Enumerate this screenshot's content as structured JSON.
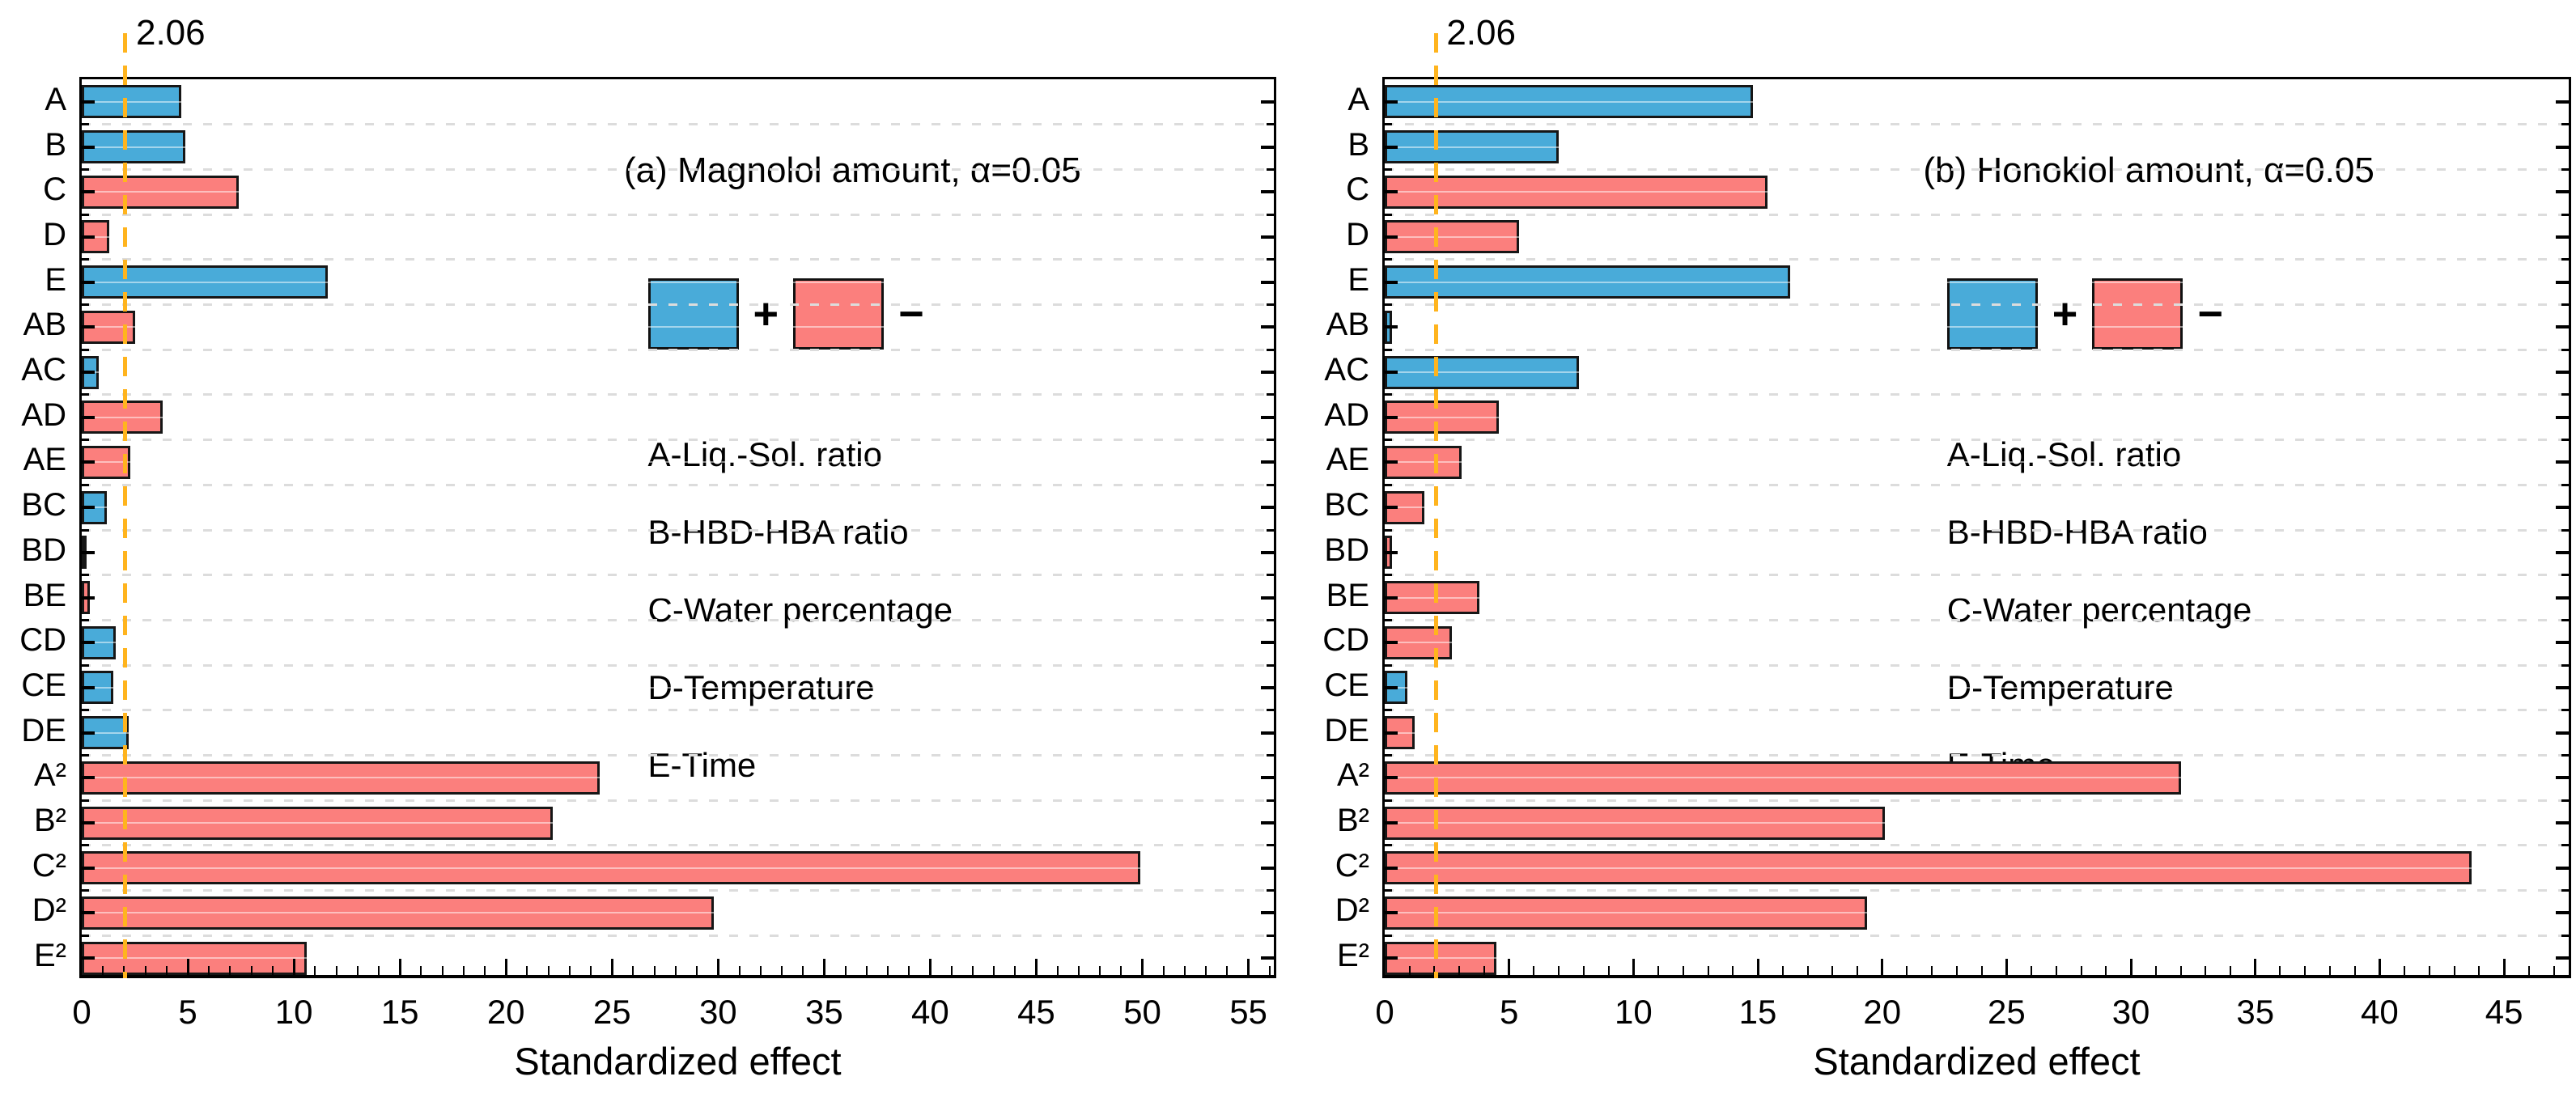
{
  "figure": {
    "xlabel": "Standardized effect",
    "threshold_label": "2.06",
    "threshold_value": 2.06
  },
  "colors": {
    "positive": "#49ABD9",
    "negative": "#FB7F7D",
    "threshold_line": "#FFB41E",
    "grid": "#DCDCDC",
    "bar_border": "#161616",
    "axis": "#000000"
  },
  "chart_data": [
    {
      "type": "bar",
      "orientation": "horizontal",
      "title": "(a) Magnolol amount, α=0.05",
      "xlabel": "Standardized effect",
      "threshold": 2.06,
      "threshold_label": "2.06",
      "xlim": [
        0,
        56.2
      ],
      "xtick_step": 5,
      "xtick_label_max": 55,
      "minor_tick_step": 1,
      "grid": "dashed horizontal lines at category boundaries",
      "legend": [
        {
          "label": "+",
          "sign": "positive"
        },
        {
          "label": "−",
          "sign": "negative"
        }
      ],
      "factors": [
        "A-Liq.-Sol. ratio",
        "B-HBD-HBA ratio",
        "C-Water percentage",
        "D-Temperature",
        "E-Time"
      ],
      "categories": [
        "A",
        "B",
        "C",
        "D",
        "E",
        "AB",
        "AC",
        "AD",
        "AE",
        "BC",
        "BD",
        "BE",
        "CD",
        "CE",
        "DE",
        "A²",
        "B²",
        "C²",
        "D²",
        "E²"
      ],
      "values": [
        4.7,
        4.9,
        7.4,
        1.3,
        11.6,
        2.5,
        0.8,
        3.8,
        2.3,
        1.2,
        0.1,
        0.4,
        1.6,
        1.5,
        2.2,
        24.4,
        22.2,
        49.9,
        29.8,
        10.6
      ],
      "signs": [
        "+",
        "+",
        "-",
        "-",
        "+",
        "-",
        "+",
        "-",
        "-",
        "+",
        "-",
        "-",
        "+",
        "+",
        "+",
        "-",
        "-",
        "-",
        "-",
        "-"
      ]
    },
    {
      "type": "bar",
      "orientation": "horizontal",
      "title": "(b) Honokiol amount, α=0.05",
      "xlabel": "Standardized effect",
      "threshold": 2.06,
      "threshold_label": "2.06",
      "xlim": [
        0,
        47.6
      ],
      "xtick_step": 5,
      "xtick_label_max": 45,
      "minor_tick_step": 1,
      "grid": "dashed horizontal lines at category boundaries",
      "legend": [
        {
          "label": "+",
          "sign": "positive"
        },
        {
          "label": "−",
          "sign": "negative"
        }
      ],
      "factors": [
        "A-Liq.-Sol. ratio",
        "B-HBD-HBA ratio",
        "C-Water percentage",
        "D-Temperature",
        "E-Time"
      ],
      "categories": [
        "A",
        "B",
        "C",
        "D",
        "E",
        "AB",
        "AC",
        "AD",
        "AE",
        "BC",
        "BD",
        "BE",
        "CD",
        "CE",
        "DE",
        "A²",
        "B²",
        "C²",
        "D²",
        "E²"
      ],
      "values": [
        14.8,
        7.0,
        15.4,
        5.4,
        16.3,
        0.3,
        7.8,
        4.6,
        3.1,
        1.6,
        0.3,
        3.8,
        2.7,
        0.9,
        1.2,
        32.0,
        20.1,
        43.7,
        19.4,
        4.5
      ],
      "signs": [
        "+",
        "+",
        "-",
        "-",
        "+",
        "+",
        "+",
        "-",
        "-",
        "-",
        "-",
        "-",
        "-",
        "+",
        "-",
        "-",
        "-",
        "-",
        "-",
        "-"
      ]
    }
  ]
}
